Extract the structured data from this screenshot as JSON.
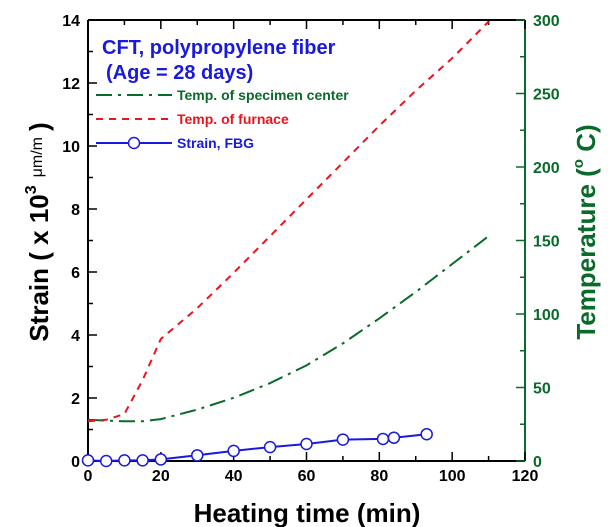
{
  "chart_data": {
    "type": "line",
    "title": "CFT, polypropylene fiber",
    "subtitle": "(Age = 28 days)",
    "xlabel": "Heating time (min)",
    "ylabel_left": "Strain ( x 10³ μm/m )",
    "ylabel_left_parts": {
      "main": "Strain ( x 10",
      "sup": "3",
      "unit": "μm/m",
      "close": ")"
    },
    "ylabel_right": "Temperature (° C)",
    "ylabel_right_parts": {
      "main": "Temperature (",
      "deg": "o",
      "close": " C)"
    },
    "xlim": [
      0,
      120
    ],
    "ylim_left": [
      0,
      14
    ],
    "ylim_right": [
      0,
      300
    ],
    "x_ticks": [
      "0",
      "20",
      "40",
      "60",
      "80",
      "100",
      "120"
    ],
    "y_left_ticks": [
      "0",
      "2",
      "4",
      "6",
      "8",
      "10",
      "12",
      "14"
    ],
    "y_right_ticks": [
      "0",
      "50",
      "100",
      "150",
      "200",
      "250",
      "300"
    ],
    "legend_position": "upper-left",
    "colors": {
      "axis": "#000000",
      "right_axis": "#0a6a2a",
      "specimen": "#0a6a2a",
      "furnace": "#e8141e",
      "strain": "#1a1adc",
      "title": "#1a1adc"
    },
    "series": [
      {
        "name": "Temp. of specimen center",
        "axis": "right",
        "style": "dash-dot",
        "x": [
          0,
          5,
          10,
          15,
          20,
          30,
          40,
          50,
          60,
          70,
          80,
          90,
          100,
          110
        ],
        "y": [
          28,
          27.5,
          27,
          27,
          28.5,
          35,
          43,
          53,
          65,
          80,
          97,
          115,
          134,
          153
        ]
      },
      {
        "name": "Temp. of furnace",
        "axis": "right",
        "style": "dashed",
        "x": [
          0,
          5,
          10,
          15,
          20,
          30,
          40,
          50,
          60,
          70,
          80,
          90,
          100,
          110
        ],
        "y": [
          27,
          28,
          32,
          55,
          83,
          104,
          128,
          153,
          178,
          203,
          228,
          252,
          274,
          299
        ]
      },
      {
        "name": "Strain, FBG",
        "axis": "left",
        "style": "solid-circle",
        "x": [
          0,
          5,
          10,
          15,
          20,
          30,
          40,
          50,
          60,
          70,
          81,
          84,
          93
        ],
        "y": [
          0.02,
          0.0,
          0.02,
          0.02,
          0.05,
          0.18,
          0.32,
          0.44,
          0.54,
          0.68,
          0.7,
          0.74,
          0.85
        ]
      }
    ]
  }
}
